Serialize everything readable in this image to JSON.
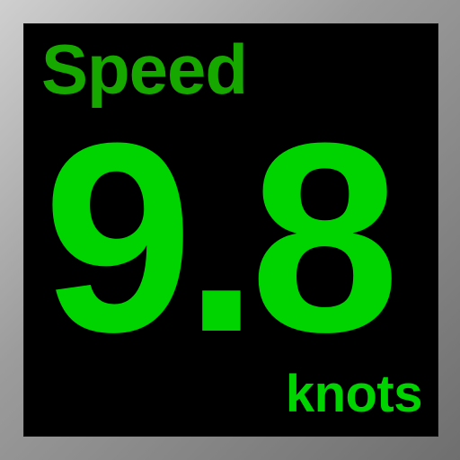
{
  "display": {
    "label": "Speed",
    "value": "9.8",
    "unit": "knots"
  },
  "colors": {
    "background_black": "#000000",
    "label_green": "#17a800",
    "value_green": "#00d400",
    "frame_gray": "#9c9c9c"
  }
}
